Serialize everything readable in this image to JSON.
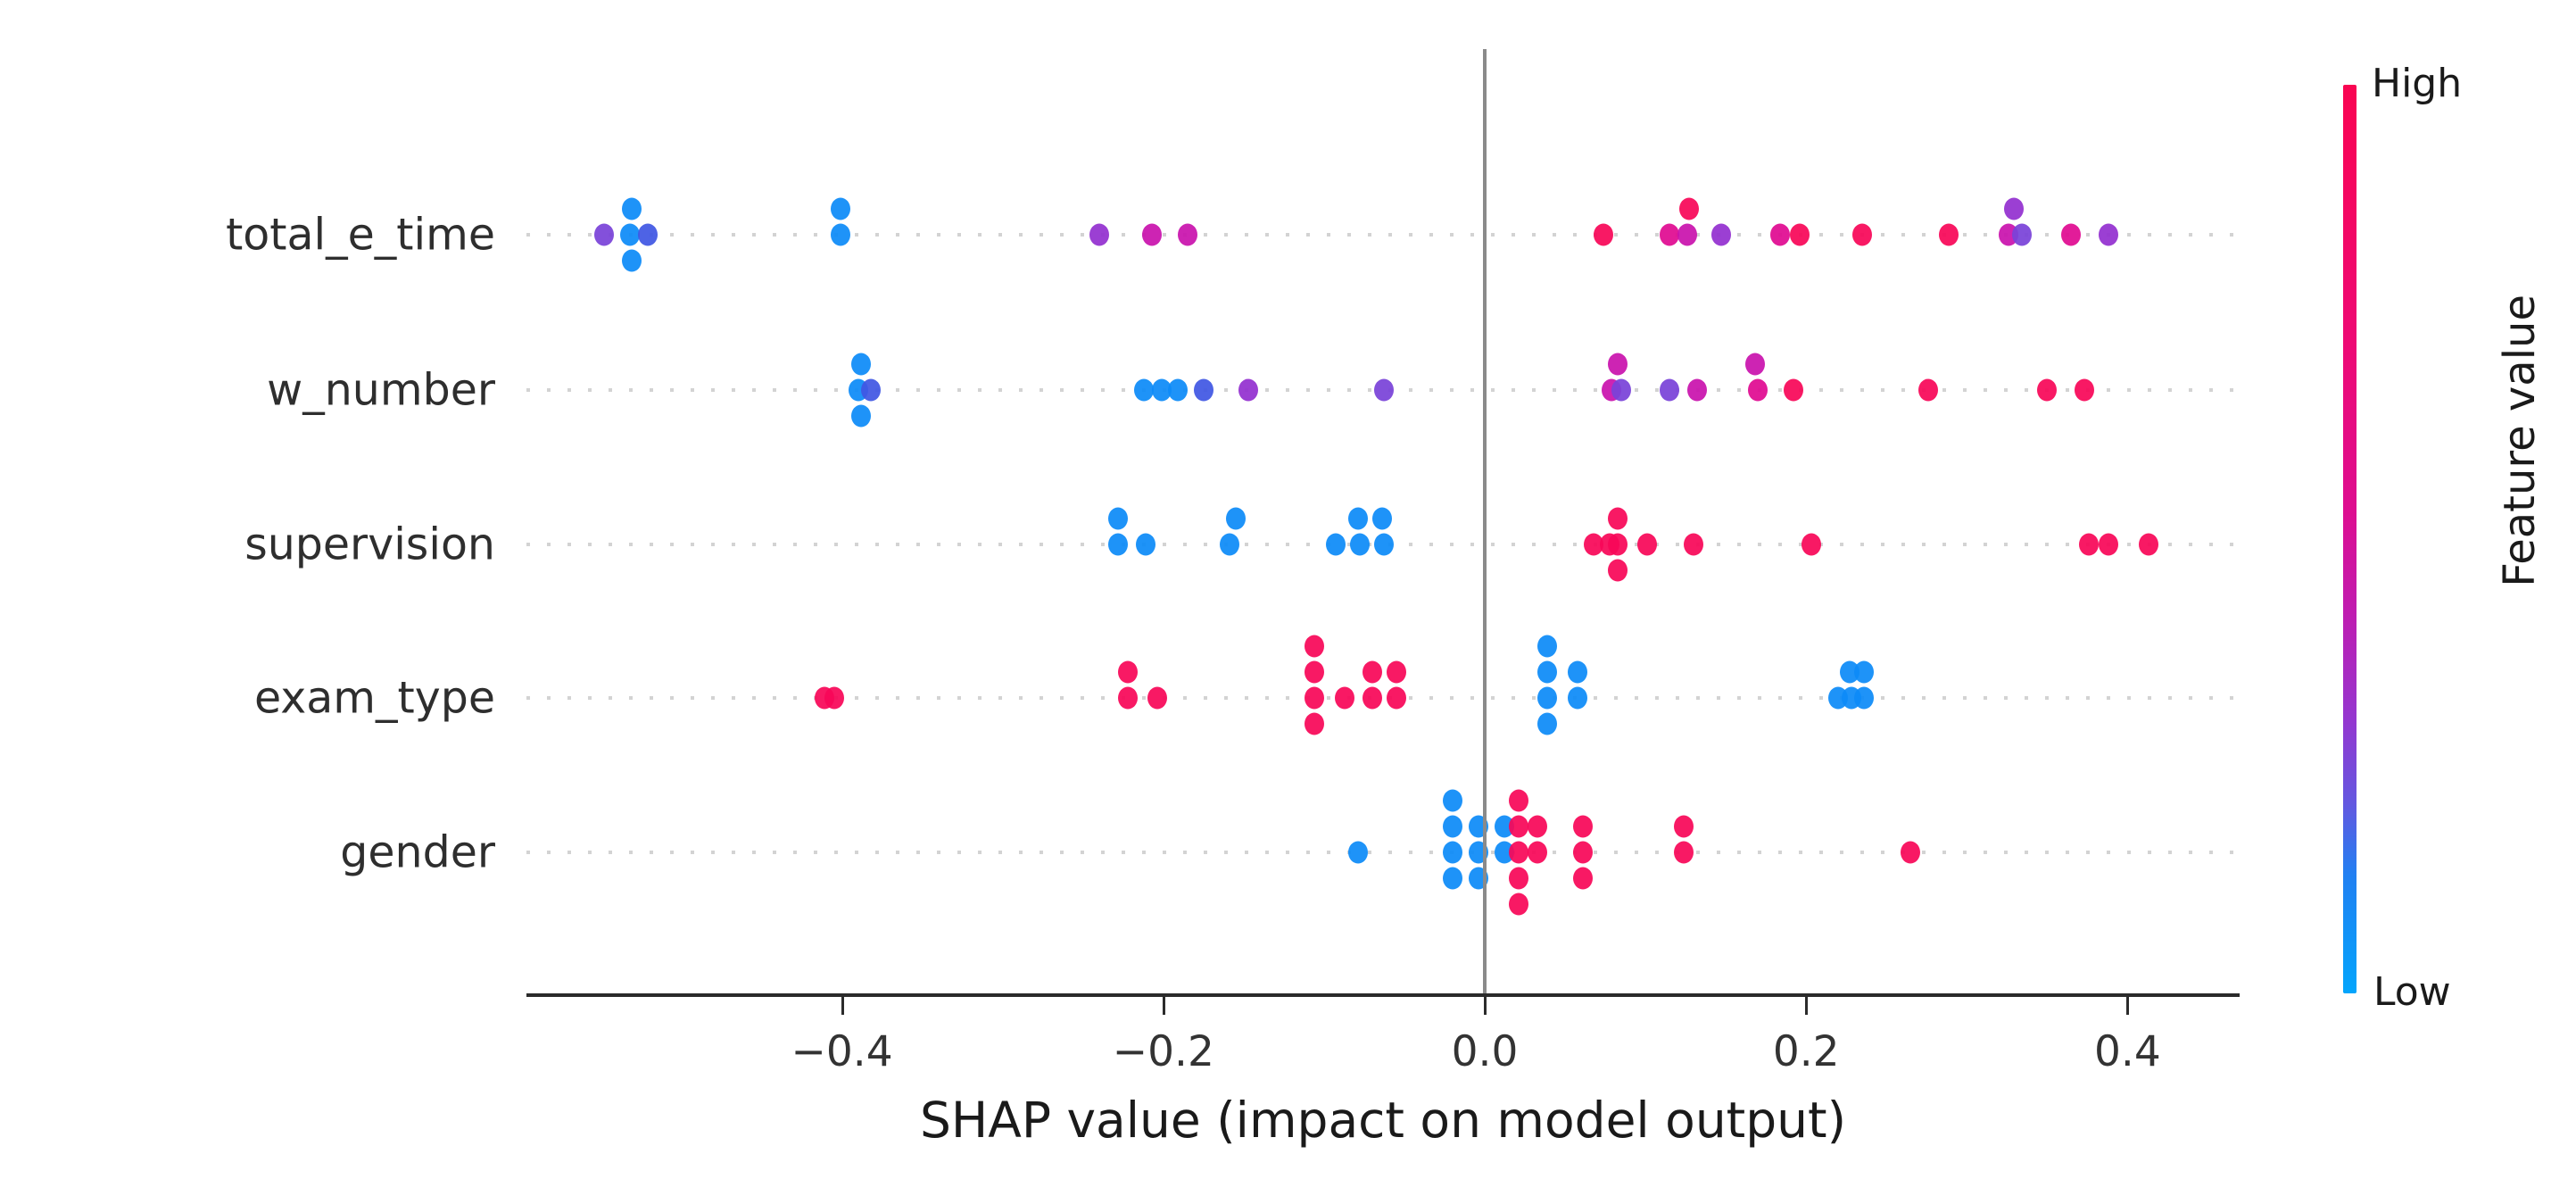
{
  "chart_data": {
    "type": "scatter",
    "variant": "shap-summary-beeswarm",
    "title": "",
    "xlabel": "SHAP value (impact on model output)",
    "x_range": [
      -0.596,
      0.47
    ],
    "grid": "dotted-row-lines",
    "x_ticks": [
      {
        "label": "−0.4",
        "value": -0.4
      },
      {
        "label": "−0.2",
        "value": -0.2
      },
      {
        "label": "0.0",
        "value": 0.0
      },
      {
        "label": "0.2",
        "value": 0.2
      },
      {
        "label": "0.4",
        "value": 0.4
      }
    ],
    "palette": {
      "blue": "#0d8bf7",
      "indigo": "#4157e3",
      "violet": "#7a43d8",
      "purple": "#9330d0",
      "magenta": "#c913ad",
      "pink": "#e00b91",
      "red": "#f80758"
    },
    "point_format": "[shap_value, stack_level, feature_value_color]",
    "features": [
      {
        "label": "total_e_time",
        "points": [
          [
            -0.548,
            0,
            "violet"
          ],
          [
            -0.532,
            0,
            "blue"
          ],
          [
            -0.521,
            0,
            "indigo"
          ],
          [
            -0.531,
            -1,
            "blue"
          ],
          [
            -0.531,
            1,
            "blue"
          ],
          [
            -0.401,
            -1,
            "blue"
          ],
          [
            -0.401,
            0,
            "blue"
          ],
          [
            -0.24,
            0,
            "purple"
          ],
          [
            -0.207,
            0,
            "magenta"
          ],
          [
            -0.185,
            0,
            "magenta"
          ],
          [
            0.074,
            0,
            "red"
          ],
          [
            0.115,
            0,
            "pink"
          ],
          [
            0.127,
            -1,
            "red"
          ],
          [
            0.126,
            0,
            "magenta"
          ],
          [
            0.147,
            0,
            "purple"
          ],
          [
            0.184,
            0,
            "pink"
          ],
          [
            0.196,
            0,
            "red"
          ],
          [
            0.235,
            0,
            "red"
          ],
          [
            0.289,
            0,
            "red"
          ],
          [
            0.329,
            -1,
            "purple"
          ],
          [
            0.326,
            0,
            "magenta"
          ],
          [
            0.334,
            0,
            "violet"
          ],
          [
            0.365,
            0,
            "pink"
          ],
          [
            0.388,
            0,
            "purple"
          ]
        ]
      },
      {
        "label": "w_number",
        "points": [
          [
            -0.388,
            -1,
            "blue"
          ],
          [
            -0.39,
            0,
            "blue"
          ],
          [
            -0.382,
            0,
            "indigo"
          ],
          [
            -0.388,
            1,
            "blue"
          ],
          [
            -0.212,
            0,
            "blue"
          ],
          [
            -0.201,
            0,
            "blue"
          ],
          [
            -0.191,
            0,
            "blue"
          ],
          [
            -0.175,
            0,
            "indigo"
          ],
          [
            -0.147,
            0,
            "purple"
          ],
          [
            -0.063,
            0,
            "violet"
          ],
          [
            0.083,
            -1,
            "magenta"
          ],
          [
            0.079,
            0,
            "magenta"
          ],
          [
            0.085,
            0,
            "violet"
          ],
          [
            0.115,
            0,
            "violet"
          ],
          [
            0.132,
            0,
            "magenta"
          ],
          [
            0.168,
            -1,
            "magenta"
          ],
          [
            0.17,
            0,
            "pink"
          ],
          [
            0.192,
            0,
            "red"
          ],
          [
            0.276,
            0,
            "red"
          ],
          [
            0.35,
            0,
            "red"
          ],
          [
            0.373,
            0,
            "red"
          ]
        ]
      },
      {
        "label": "supervision",
        "points": [
          [
            -0.228,
            -1,
            "blue"
          ],
          [
            -0.228,
            0,
            "blue"
          ],
          [
            -0.211,
            0,
            "blue"
          ],
          [
            -0.155,
            -1,
            "blue"
          ],
          [
            -0.159,
            0,
            "blue"
          ],
          [
            -0.093,
            0,
            "blue"
          ],
          [
            -0.079,
            -1,
            "blue"
          ],
          [
            -0.078,
            0,
            "blue"
          ],
          [
            -0.064,
            -1,
            "blue"
          ],
          [
            -0.063,
            0,
            "blue"
          ],
          [
            0.068,
            0,
            "red"
          ],
          [
            0.078,
            0,
            "red"
          ],
          [
            0.083,
            -1,
            "red"
          ],
          [
            0.083,
            0,
            "red"
          ],
          [
            0.083,
            1,
            "red"
          ],
          [
            0.101,
            0,
            "red"
          ],
          [
            0.13,
            0,
            "red"
          ],
          [
            0.203,
            0,
            "red"
          ],
          [
            0.376,
            0,
            "red"
          ],
          [
            0.388,
            0,
            "red"
          ],
          [
            0.413,
            0,
            "red"
          ]
        ]
      },
      {
        "label": "exam_type",
        "points": [
          [
            -0.411,
            0,
            "red"
          ],
          [
            -0.405,
            0,
            "red"
          ],
          [
            -0.222,
            -1,
            "red"
          ],
          [
            -0.222,
            0,
            "red"
          ],
          [
            -0.204,
            0,
            "red"
          ],
          [
            -0.106,
            -2,
            "red"
          ],
          [
            -0.106,
            -1,
            "red"
          ],
          [
            -0.106,
            0,
            "red"
          ],
          [
            -0.106,
            1,
            "red"
          ],
          [
            -0.087,
            0,
            "red"
          ],
          [
            -0.07,
            -1,
            "red"
          ],
          [
            -0.07,
            0,
            "red"
          ],
          [
            -0.055,
            -1,
            "red"
          ],
          [
            -0.055,
            0,
            "red"
          ],
          [
            0.039,
            -2,
            "blue"
          ],
          [
            0.039,
            -1,
            "blue"
          ],
          [
            0.039,
            0,
            "blue"
          ],
          [
            0.039,
            1,
            "blue"
          ],
          [
            0.058,
            -1,
            "blue"
          ],
          [
            0.058,
            0,
            "blue"
          ],
          [
            0.227,
            -1,
            "blue"
          ],
          [
            0.236,
            -1,
            "blue"
          ],
          [
            0.22,
            0,
            "blue"
          ],
          [
            0.228,
            0,
            "blue"
          ],
          [
            0.236,
            0,
            "blue"
          ]
        ]
      },
      {
        "label": "gender",
        "points": [
          [
            -0.079,
            0,
            "blue"
          ],
          [
            -0.02,
            -2,
            "blue"
          ],
          [
            -0.02,
            -1,
            "blue"
          ],
          [
            -0.02,
            0,
            "blue"
          ],
          [
            -0.02,
            1,
            "blue"
          ],
          [
            -0.004,
            -1,
            "blue"
          ],
          [
            -0.004,
            0,
            "blue"
          ],
          [
            -0.004,
            1,
            "blue"
          ],
          [
            0.012,
            -1,
            "blue"
          ],
          [
            0.012,
            0,
            "blue"
          ],
          [
            0.021,
            -2,
            "red"
          ],
          [
            0.021,
            -1,
            "red"
          ],
          [
            0.021,
            0,
            "red"
          ],
          [
            0.021,
            1,
            "red"
          ],
          [
            0.021,
            2,
            "red"
          ],
          [
            0.033,
            -1,
            "red"
          ],
          [
            0.033,
            0,
            "red"
          ],
          [
            0.061,
            -1,
            "red"
          ],
          [
            0.061,
            0,
            "red"
          ],
          [
            0.061,
            1,
            "red"
          ],
          [
            0.124,
            -1,
            "red"
          ],
          [
            0.124,
            0,
            "red"
          ],
          [
            0.265,
            0,
            "red"
          ]
        ]
      }
    ],
    "colorbar": {
      "title": "Feature value",
      "high_label": "High",
      "low_label": "Low",
      "high_color": "#f90552",
      "low_color": "#03a5fc",
      "gradient_stops": [
        {
          "pos": 0.0,
          "color": "#f90552"
        },
        {
          "pos": 0.28,
          "color": "#ee0a74"
        },
        {
          "pos": 0.47,
          "color": "#dd0e90"
        },
        {
          "pos": 0.58,
          "color": "#c01cb0"
        },
        {
          "pos": 0.7,
          "color": "#9437d0"
        },
        {
          "pos": 0.79,
          "color": "#6457e0"
        },
        {
          "pos": 0.87,
          "color": "#2180f2"
        },
        {
          "pos": 1.0,
          "color": "#03a5fc"
        }
      ]
    },
    "zero_line_color": "#8a8a8a",
    "axis_line_color": "#2b2b2b"
  }
}
